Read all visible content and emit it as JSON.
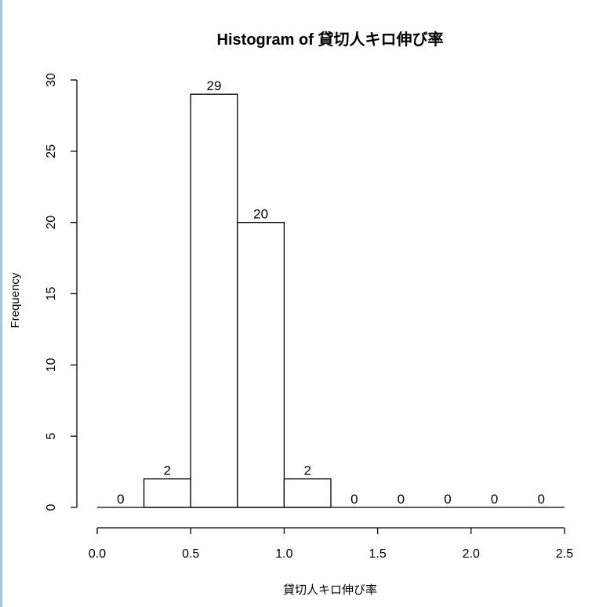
{
  "chart_data": {
    "type": "bar",
    "title": "Histogram of 貸切人キロ伸び率",
    "xlabel": "貸切人キロ伸び率",
    "ylabel": "Frequency",
    "bins": [
      {
        "start": 0.0,
        "end": 0.25,
        "count": 0
      },
      {
        "start": 0.25,
        "end": 0.5,
        "count": 2
      },
      {
        "start": 0.5,
        "end": 0.75,
        "count": 29
      },
      {
        "start": 0.75,
        "end": 1.0,
        "count": 20
      },
      {
        "start": 1.0,
        "end": 1.25,
        "count": 2
      },
      {
        "start": 1.25,
        "end": 1.5,
        "count": 0
      },
      {
        "start": 1.5,
        "end": 1.75,
        "count": 0
      },
      {
        "start": 1.75,
        "end": 2.0,
        "count": 0
      },
      {
        "start": 2.0,
        "end": 2.25,
        "count": 0
      },
      {
        "start": 2.25,
        "end": 2.5,
        "count": 0
      }
    ],
    "data_labels": [
      "0",
      "2",
      "29",
      "20",
      "2",
      "0",
      "0",
      "0",
      "0",
      "0"
    ],
    "xlim": [
      0,
      2.5
    ],
    "ylim": [
      0,
      30
    ],
    "x_ticks": [
      "0.0",
      "0.5",
      "1.0",
      "1.5",
      "2.0",
      "2.5"
    ],
    "y_ticks": [
      "0",
      "5",
      "10",
      "15",
      "20",
      "25",
      "30"
    ],
    "grid": false,
    "bar_fill": "#ffffff",
    "bar_stroke": "#000000"
  }
}
